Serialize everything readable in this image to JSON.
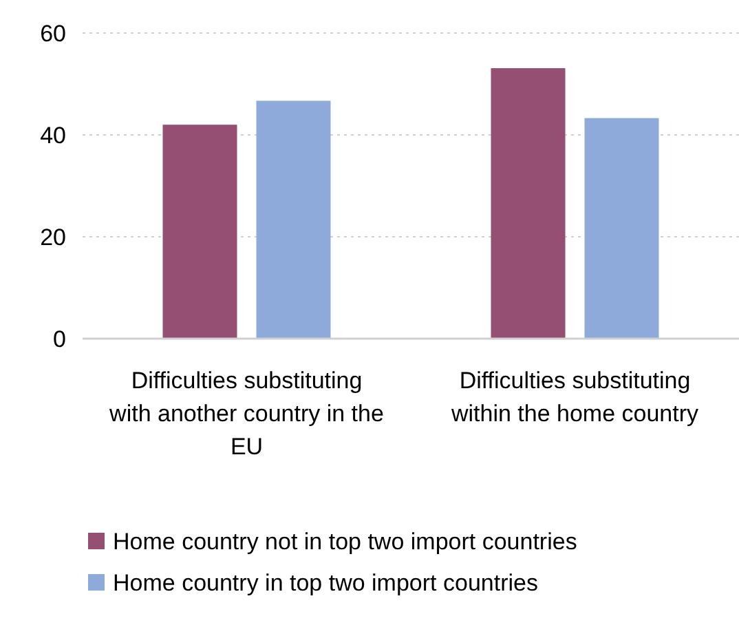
{
  "chart_data": {
    "type": "bar",
    "categories": [
      "Difficulties substituting with another country in the EU",
      "Difficulties substituting within the home country"
    ],
    "series": [
      {
        "name": "Home country not in top two import countries",
        "color": "#954f72",
        "values": [
          42,
          53.1
        ]
      },
      {
        "name": "Home country in top two import countries",
        "color": "#8eaadb",
        "values": [
          46.7,
          43.3
        ]
      }
    ],
    "ylim": [
      0,
      60
    ],
    "yticks": [
      0,
      20,
      40,
      60
    ],
    "grid": "y",
    "legend": "bottom"
  }
}
